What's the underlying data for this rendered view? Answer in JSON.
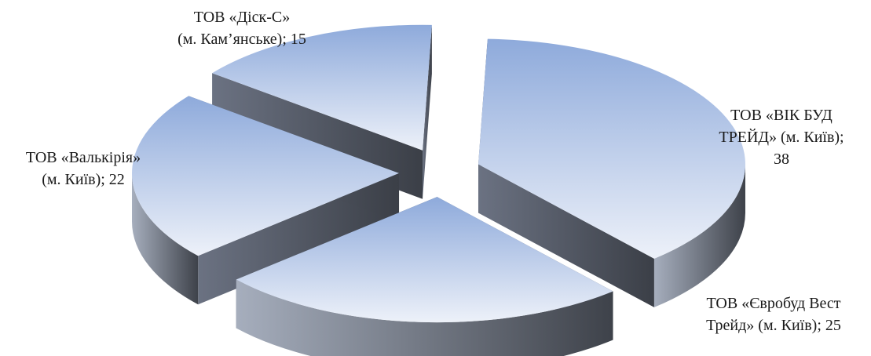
{
  "chart_data": {
    "type": "pie",
    "title": "",
    "slices": [
      {
        "label_lines": [
          "ТОВ «ВІК БУД",
          "ТРЕЙД» (м. Київ);",
          "38"
        ],
        "label": "ТОВ «ВІК БУД ТРЕЙД» (м. Київ)",
        "value": 38
      },
      {
        "label_lines": [
          "ТОВ «Євробуд Вест",
          "Трейд» (м. Київ); 25"
        ],
        "label": "ТОВ «Євробуд Вест Трейд» (м. Київ)",
        "value": 25
      },
      {
        "label_lines": [
          "ТОВ «Валькірія»",
          "(м. Київ); 22"
        ],
        "label": "ТОВ «Валькірія» (м. Київ)",
        "value": 22
      },
      {
        "label_lines": [
          "ТОВ «Діск-С»",
          "(м. Кам’янське); 15"
        ],
        "label": "ТОВ «Діск-С» (м. Кам’янське)",
        "value": 15
      }
    ],
    "style": "3d-exploded",
    "colors": {
      "top_light": "#edf1f9",
      "top_dark": "#8eaadb",
      "side_light": "#a6aebd",
      "side_dark": "#3e424a"
    },
    "legend": "none"
  }
}
